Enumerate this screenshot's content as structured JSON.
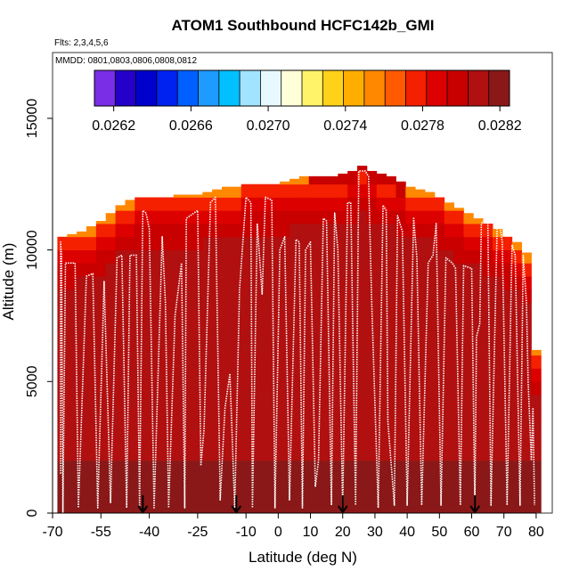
{
  "chart_data": {
    "type": "heatmap",
    "title": "ATOM1 Southbound HCFC142b_GMI",
    "subtitle_flights": "Flts: 2,3,4,5,6",
    "subtitle_dates": "MMDD: 0801,0803,0806,0808,0812",
    "xlabel": "Latitude (deg N)",
    "ylabel": "Altitude (m)",
    "xlim": [
      -70,
      85
    ],
    "ylim": [
      0,
      17500
    ],
    "x_ticks": [
      -70,
      -55,
      -40,
      -25,
      -10,
      0,
      10,
      20,
      30,
      40,
      50,
      60,
      70,
      80
    ],
    "x_tick_labels": [
      "-70",
      "-55",
      "-40",
      "-25",
      "-10",
      "0",
      "10",
      "20",
      "30",
      "40",
      "50",
      "60",
      "70",
      "80"
    ],
    "y_ticks": [
      0,
      5000,
      10000,
      15000
    ],
    "y_tick_labels": [
      "0",
      "5000",
      "10000",
      "15000"
    ],
    "colorbar": {
      "ticks": [
        0.0262,
        0.0266,
        0.027,
        0.0274,
        0.0278,
        0.0282
      ],
      "tick_labels": [
        "0.0262",
        "0.0266",
        "0.0270",
        "0.0274",
        "0.0278",
        "0.0282"
      ],
      "range": [
        0.0261,
        0.02825
      ],
      "colors": [
        "#7a2ee6",
        "#2400c8",
        "#0000cc",
        "#0022ee",
        "#0060ff",
        "#1e9bff",
        "#00c0ff",
        "#a0e4ff",
        "#e8f8ff",
        "#ffffd8",
        "#fff36a",
        "#ffd21a",
        "#ffae00",
        "#ff8800",
        "#ff5a00",
        "#f52000",
        "#dc0000",
        "#c80000",
        "#b01010",
        "#8a1818"
      ]
    },
    "column_top_altitudes": [
      {
        "lat": -67,
        "top": 10500
      },
      {
        "lat": -64,
        "top": 10600
      },
      {
        "lat": -61,
        "top": 10700
      },
      {
        "lat": -58,
        "top": 10900
      },
      {
        "lat": -55,
        "top": 11100
      },
      {
        "lat": -52,
        "top": 11400
      },
      {
        "lat": -49,
        "top": 11700
      },
      {
        "lat": -46,
        "top": 11900
      },
      {
        "lat": -43,
        "top": 12000
      },
      {
        "lat": -40,
        "top": 12000
      },
      {
        "lat": -37,
        "top": 12000
      },
      {
        "lat": -34,
        "top": 12000
      },
      {
        "lat": -31,
        "top": 12100
      },
      {
        "lat": -28,
        "top": 12100
      },
      {
        "lat": -25,
        "top": 12100
      },
      {
        "lat": -22,
        "top": 12200
      },
      {
        "lat": -19,
        "top": 12300
      },
      {
        "lat": -16,
        "top": 12400
      },
      {
        "lat": -13,
        "top": 12400
      },
      {
        "lat": -10,
        "top": 12500
      },
      {
        "lat": -7,
        "top": 12500
      },
      {
        "lat": -4,
        "top": 12500
      },
      {
        "lat": -1,
        "top": 12500
      },
      {
        "lat": 2,
        "top": 12600
      },
      {
        "lat": 5,
        "top": 12700
      },
      {
        "lat": 8,
        "top": 12800
      },
      {
        "lat": 11,
        "top": 12800
      },
      {
        "lat": 14,
        "top": 12800
      },
      {
        "lat": 17,
        "top": 12800
      },
      {
        "lat": 20,
        "top": 12900
      },
      {
        "lat": 23,
        "top": 13000
      },
      {
        "lat": 26,
        "top": 13200
      },
      {
        "lat": 29,
        "top": 13000
      },
      {
        "lat": 32,
        "top": 12900
      },
      {
        "lat": 35,
        "top": 12800
      },
      {
        "lat": 38,
        "top": 12600
      },
      {
        "lat": 41,
        "top": 12400
      },
      {
        "lat": 44,
        "top": 12300
      },
      {
        "lat": 47,
        "top": 12200
      },
      {
        "lat": 50,
        "top": 12000
      },
      {
        "lat": 53,
        "top": 11800
      },
      {
        "lat": 56,
        "top": 11600
      },
      {
        "lat": 59,
        "top": 11400
      },
      {
        "lat": 62,
        "top": 11200
      },
      {
        "lat": 65,
        "top": 11000
      },
      {
        "lat": 68,
        "top": 10800
      },
      {
        "lat": 71,
        "top": 10500
      },
      {
        "lat": 74,
        "top": 10300
      },
      {
        "lat": 77,
        "top": 9900
      },
      {
        "lat": 80,
        "top": 6200
      }
    ],
    "flight_track": [
      [
        -67.5,
        1500
      ],
      [
        -67.5,
        10300
      ],
      [
        -67.2,
        9800
      ],
      [
        -66.8,
        0
      ],
      [
        -66,
        9500
      ],
      [
        -63,
        9500
      ],
      [
        -62,
        200
      ],
      [
        -59.5,
        9000
      ],
      [
        -57.5,
        9100
      ],
      [
        -56,
        200
      ],
      [
        -54,
        8800
      ],
      [
        -52,
        400
      ],
      [
        -50,
        9700
      ],
      [
        -48.5,
        9800
      ],
      [
        -47,
        200
      ],
      [
        -46,
        9800
      ],
      [
        -44,
        9800
      ],
      [
        -43,
        300
      ],
      [
        -42,
        11500
      ],
      [
        -41,
        11400
      ],
      [
        -40,
        10800
      ],
      [
        -38.5,
        200
      ],
      [
        -36,
        10500
      ],
      [
        -35,
        8000
      ],
      [
        -34,
        200
      ],
      [
        -32,
        7500
      ],
      [
        -30,
        9500
      ],
      [
        -29,
        200
      ],
      [
        -28.5,
        11200
      ],
      [
        -25,
        11500
      ],
      [
        -24,
        1800
      ],
      [
        -23,
        3200
      ],
      [
        -21,
        11800
      ],
      [
        -19.5,
        12000
      ],
      [
        -18,
        500
      ],
      [
        -16.5,
        4000
      ],
      [
        -15,
        5300
      ],
      [
        -13.5,
        200
      ],
      [
        -12,
        8500
      ],
      [
        -10,
        12000
      ],
      [
        -8.5,
        11800
      ],
      [
        -8,
        200
      ],
      [
        -6.5,
        11000
      ],
      [
        -5,
        8300
      ],
      [
        -4,
        12000
      ],
      [
        -2,
        11900
      ],
      [
        -1,
        200
      ],
      [
        0.5,
        10000
      ],
      [
        2,
        10500
      ],
      [
        3.5,
        500
      ],
      [
        5.5,
        10400
      ],
      [
        6.5,
        10300
      ],
      [
        7.5,
        200
      ],
      [
        8.5,
        10000
      ],
      [
        10,
        10300
      ],
      [
        11.5,
        1000
      ],
      [
        12.5,
        2000
      ],
      [
        14,
        11200
      ],
      [
        15,
        11100
      ],
      [
        16.5,
        300
      ],
      [
        17.5,
        11400
      ],
      [
        18.5,
        10000
      ],
      [
        20,
        200
      ],
      [
        21.5,
        11800
      ],
      [
        22.5,
        11800
      ],
      [
        24,
        300
      ],
      [
        25,
        13000
      ],
      [
        27,
        13000
      ],
      [
        28,
        12800
      ],
      [
        29,
        8000
      ],
      [
        31,
        200
      ],
      [
        32.5,
        11700
      ],
      [
        33.5,
        11500
      ],
      [
        34,
        3500
      ],
      [
        36,
        300
      ],
      [
        37,
        11300
      ],
      [
        38.5,
        10700
      ],
      [
        40,
        300
      ],
      [
        42,
        11200
      ],
      [
        43,
        9700
      ],
      [
        44.5,
        300
      ],
      [
        46.5,
        9500
      ],
      [
        48,
        9800
      ],
      [
        49,
        11000
      ],
      [
        50.5,
        300
      ],
      [
        52,
        9700
      ],
      [
        54,
        9500
      ],
      [
        55,
        9300
      ],
      [
        56.5,
        300
      ],
      [
        57.5,
        9400
      ],
      [
        60,
        9300
      ],
      [
        61,
        200
      ],
      [
        61.5,
        6700
      ],
      [
        62.5,
        7200
      ],
      [
        63,
        11000
      ],
      [
        65,
        11300
      ],
      [
        66,
        300
      ],
      [
        68,
        11500
      ],
      [
        69.5,
        10300
      ],
      [
        71,
        300
      ],
      [
        72.5,
        10200
      ],
      [
        73.5,
        9800
      ],
      [
        75,
        300
      ],
      [
        76,
        9800
      ],
      [
        77,
        8000
      ],
      [
        77.5,
        5000
      ],
      [
        78.5,
        2000
      ],
      [
        79,
        4000
      ],
      [
        79.5,
        300
      ]
    ],
    "profile_markers_lat": [
      -42,
      -13,
      20,
      61
    ]
  }
}
